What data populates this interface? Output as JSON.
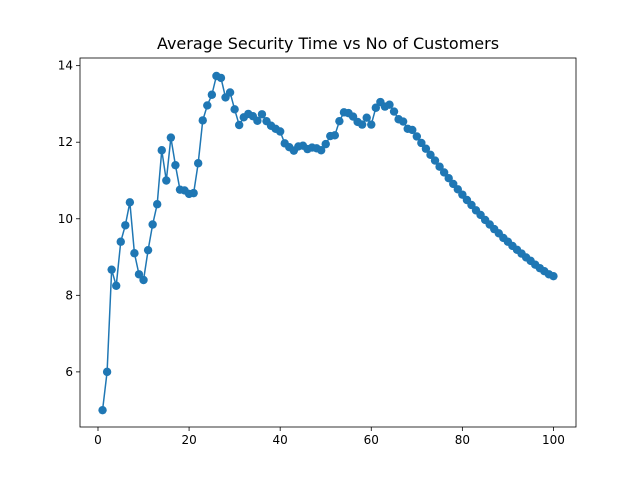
{
  "chart_data": {
    "type": "line",
    "title": "Average Security Time vs No of Customers",
    "xlabel": "",
    "ylabel": "",
    "xlim": [
      -3.95,
      104.95
    ],
    "ylim": [
      4.56,
      14.2
    ],
    "xticks": [
      0,
      20,
      40,
      60,
      80,
      100
    ],
    "yticks": [
      6,
      8,
      10,
      12,
      14
    ],
    "grid": false,
    "marker": "circle",
    "color": "#1f77b4",
    "series": [
      {
        "x": [
          1,
          2,
          3,
          4,
          5,
          6,
          7,
          8,
          9,
          10,
          11,
          12,
          13,
          14,
          15,
          16,
          17,
          18,
          19,
          20,
          21,
          22,
          23,
          24,
          25,
          26,
          27,
          28,
          29,
          30,
          31,
          32,
          33,
          34,
          35,
          36,
          37,
          38,
          39,
          40,
          41,
          42,
          43,
          44,
          45,
          46,
          47,
          48,
          49,
          50,
          51,
          52,
          53,
          54,
          55,
          56,
          57,
          58,
          59,
          60,
          61,
          62,
          63,
          64,
          65,
          66,
          67,
          68,
          69,
          70,
          71,
          72,
          73,
          74,
          75,
          76,
          77,
          78,
          79,
          80,
          81,
          82,
          83,
          84,
          85,
          86,
          87,
          88,
          89,
          90,
          91,
          92,
          93,
          94,
          95,
          96,
          97,
          98,
          99,
          100
        ],
        "y": [
          5.0,
          6.0,
          8.67,
          8.25,
          9.4,
          9.83,
          10.43,
          9.1,
          8.55,
          8.4,
          9.18,
          9.85,
          10.38,
          11.79,
          11.0,
          12.12,
          11.4,
          10.76,
          10.74,
          10.65,
          10.67,
          11.45,
          12.57,
          12.96,
          13.24,
          13.73,
          13.68,
          13.17,
          13.3,
          12.86,
          12.45,
          12.65,
          12.74,
          12.68,
          12.56,
          12.73,
          12.55,
          12.43,
          12.35,
          12.28,
          11.97,
          11.87,
          11.78,
          11.89,
          11.91,
          11.82,
          11.86,
          11.84,
          11.79,
          11.95,
          12.16,
          12.18,
          12.55,
          12.78,
          12.76,
          12.67,
          12.53,
          12.46,
          12.64,
          12.46,
          12.9,
          13.05,
          12.93,
          12.98,
          12.8,
          12.6,
          12.54,
          12.35,
          12.32,
          12.15,
          11.98,
          11.83,
          11.67,
          11.52,
          11.36,
          11.21,
          11.06,
          10.91,
          10.77,
          10.63,
          10.49,
          10.36,
          10.22,
          10.1,
          9.97,
          9.85,
          9.73,
          9.62,
          9.5,
          9.4,
          9.29,
          9.19,
          9.09,
          8.99,
          8.9,
          8.8,
          8.71,
          8.63,
          8.55,
          8.5
        ]
      }
    ]
  }
}
